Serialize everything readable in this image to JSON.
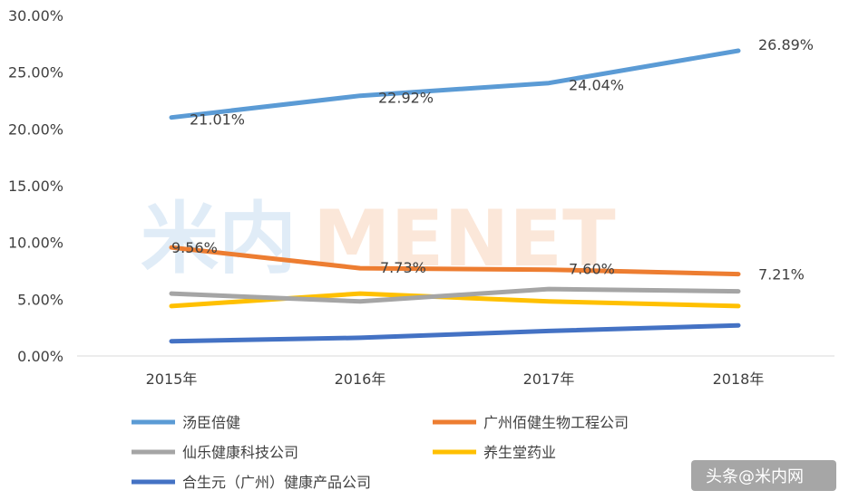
{
  "chart_data": {
    "type": "line",
    "categories": [
      "2015年",
      "2016年",
      "2017年",
      "2018年"
    ],
    "ylim": [
      0,
      30
    ],
    "yticks": [
      "0.00%",
      "5.00%",
      "10.00%",
      "15.00%",
      "20.00%",
      "25.00%",
      "30.00%"
    ],
    "grid": false,
    "legend_position": "bottom",
    "series": [
      {
        "name": "汤臣倍健",
        "color": "#5B9BD5",
        "values": [
          21.01,
          22.92,
          24.04,
          26.89
        ],
        "labels": [
          "21.01%",
          "22.92%",
          "24.04%",
          "26.89%"
        ]
      },
      {
        "name": "广州佰健生物工程公司",
        "color": "#ED7D31",
        "values": [
          9.56,
          7.73,
          7.6,
          7.21
        ],
        "labels": [
          "9.56%",
          "7.73%",
          "7.60%",
          "7.21%"
        ]
      },
      {
        "name": "仙乐健康科技公司",
        "color": "#A5A5A5",
        "values": [
          5.5,
          4.8,
          5.9,
          5.7
        ],
        "labels": []
      },
      {
        "name": "养生堂药业",
        "color": "#FFC000",
        "values": [
          4.4,
          5.5,
          4.8,
          4.4
        ],
        "labels": []
      },
      {
        "name": "合生元（广州）健康产品公司",
        "color": "#4472C4",
        "values": [
          1.3,
          1.6,
          2.2,
          2.7
        ],
        "labels": []
      }
    ]
  },
  "watermark": {
    "text": "米内MENET"
  },
  "credit": {
    "text": "头条@米内网"
  }
}
